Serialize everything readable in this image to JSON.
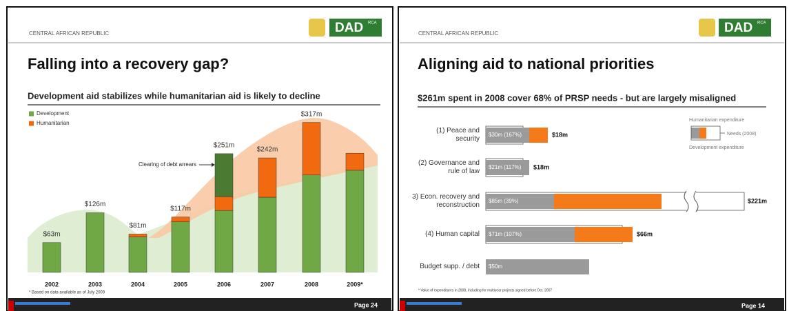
{
  "chart_data": [
    {
      "type": "bar",
      "header": "CENTRAL AFRICAN REPUBLIC",
      "logo": "DAD",
      "logo_sup": "RCA",
      "title": "Falling into a recovery gap?",
      "subtitle": "Development aid stabilizes while humanitarian aid is likely to decline",
      "categories": [
        "2002",
        "2003",
        "2004",
        "2005",
        "2006",
        "2007",
        "2008",
        "2009*"
      ],
      "series": [
        {
          "name": "Development",
          "color": "#6fa844",
          "values": [
            63,
            126,
            75,
            107,
            131,
            159,
            206,
            216
          ]
        },
        {
          "name": "Humanitarian",
          "color": "#f26a10",
          "values": [
            0,
            0,
            6,
            10,
            29,
            83,
            111,
            36
          ]
        },
        {
          "color": "#4b7a33",
          "values": [
            null,
            null,
            null,
            null,
            91,
            null,
            null,
            null
          ]
        }
      ],
      "totals": [
        63,
        126,
        81,
        117,
        251,
        242,
        317,
        null
      ],
      "total_labels": [
        "$63m",
        "$126m",
        "$81m",
        "$117m",
        "$251m",
        "$242m",
        "$317m",
        null
      ],
      "annotation": "Clearing of debt arrears",
      "ylim": [
        0,
        350
      ],
      "footnote": "* Based on data available as of July 2009",
      "page": "Page 24"
    },
    {
      "type": "barh",
      "header": "CENTRAL AFRICAN REPUBLIC",
      "logo": "DAD",
      "logo_sup": "RCA",
      "title": "Aligning aid to national priorities",
      "subtitle": "$261m spent in 2008 cover 68% of PRSP needs - but are largely misaligned",
      "categories": [
        "(1) Peace and security",
        "(2) Governance and rule of law",
        "3) Econ. recovery and reconstruction",
        "(4) Human capital",
        "Budget supp. / debt"
      ],
      "series": [
        {
          "name": "Development expenditure",
          "color": "#9a9a9a",
          "values": [
            21,
            21,
            33,
            43,
            50
          ]
        },
        {
          "name": "Humanitarian expenditure",
          "color": "#f57a1a",
          "values": [
            9,
            null,
            52,
            28,
            null
          ]
        }
      ],
      "bar_labels": [
        "$30m (167%)",
        "$21m (117%)",
        "$85m (39%)",
        "$71m (107%)",
        "$50m"
      ],
      "needs": {
        "name": "Needs (2008)",
        "values": [
          18,
          18,
          221,
          66,
          null
        ],
        "value_labels": [
          "$18m",
          "$18m",
          "$221m",
          "$66m",
          null
        ]
      },
      "xlim": [
        0,
        125
      ],
      "footnote": "* Value of expenditures in 2008, including for multiyear projects signed before Oct. 2007",
      "page": "Page 14"
    }
  ]
}
